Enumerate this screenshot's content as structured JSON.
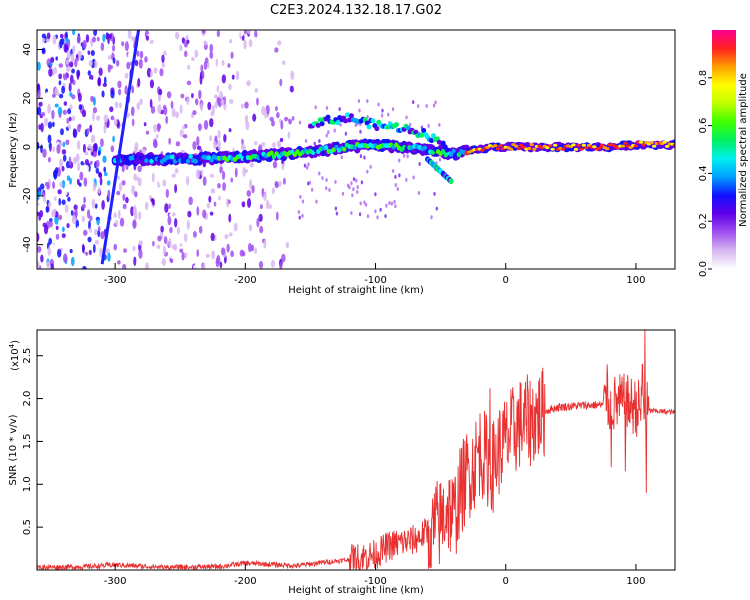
{
  "figure": {
    "title": "C2E3.2024.132.18.17.G02"
  },
  "chart_data": [
    {
      "type": "heatmap",
      "xlabel": "Height of straight line (km)",
      "ylabel": "Frequency (Hz)",
      "xlim": [
        -360,
        130
      ],
      "ylim": [
        -50,
        48
      ],
      "xticks": [
        -300,
        -200,
        -100,
        0,
        100
      ],
      "yticks": [
        -40,
        -20,
        0,
        20,
        40
      ],
      "grid": false,
      "colorbar": {
        "label": "Normalized spectral amplitude",
        "range": [
          0,
          1
        ],
        "ticks": [
          0.0,
          0.2,
          0.4,
          0.6,
          0.8
        ],
        "colormap": [
          "#ffffff",
          "#d8b8f0",
          "#a050f0",
          "#6000e8",
          "#1010ff",
          "#00a0ff",
          "#00f0f0",
          "#00f060",
          "#40ff00",
          "#c0ff00",
          "#ffff00",
          "#ffa000",
          "#ff2020",
          "#ff0090"
        ]
      },
      "features": {
        "noise_region_x": [
          -360,
          -160
        ],
        "main_track": {
          "x": [
            -300,
            -250,
            -200,
            -150,
            -120,
            -100,
            -80,
            -60,
            -45,
            -30,
            -10,
            0,
            20,
            50,
            80,
            100,
            130
          ],
          "frequency": [
            -5,
            -5,
            -4,
            -2,
            0,
            1,
            0,
            -1,
            -3,
            -2,
            0,
            0,
            0,
            0,
            0,
            1,
            1
          ]
        },
        "diagonal_track": {
          "x": [
            -310,
            -282
          ],
          "frequency": [
            -48,
            48
          ]
        },
        "upper_branch": {
          "x": [
            -150,
            -120,
            -100,
            -80,
            -60,
            -45
          ],
          "frequency": [
            10,
            12,
            9,
            8,
            5,
            0
          ]
        },
        "lower_branch": {
          "x": [
            -60,
            -50,
            -42
          ],
          "frequency": [
            -5,
            -10,
            -14
          ]
        }
      }
    },
    {
      "type": "line",
      "xlabel": "Height of straight line (km)",
      "ylabel": "SNR (10 * v/v)",
      "yunit_label": "(x10",
      "yunit_exp": "4",
      "yunit_close": ")",
      "xlim": [
        -360,
        130
      ],
      "ylim": [
        0,
        2.8
      ],
      "xticks": [
        -300,
        -200,
        -100,
        0,
        100
      ],
      "yticks": [
        0.5,
        1.0,
        1.5,
        2.0,
        2.5
      ],
      "grid": false,
      "color": "#e83030",
      "series": [
        {
          "x": [
            -360,
            -320,
            -300,
            -260,
            -220,
            -200,
            -160,
            -140,
            -120,
            -100,
            -90,
            -80,
            -70,
            -60,
            -50,
            -45,
            -40,
            -35,
            -30,
            -25,
            -20,
            -15,
            -10,
            -5,
            0,
            5,
            10,
            20,
            30,
            40,
            60,
            80,
            90,
            100,
            105,
            110,
            120,
            130
          ],
          "values": [
            0.03,
            0.04,
            0.06,
            0.03,
            0.04,
            0.08,
            0.05,
            0.09,
            0.12,
            0.18,
            0.28,
            0.32,
            0.35,
            0.45,
            0.55,
            0.75,
            0.6,
            0.9,
            1.1,
            1.2,
            1.4,
            1.3,
            1.2,
            1.4,
            1.5,
            1.6,
            1.7,
            1.75,
            1.85,
            1.9,
            1.92,
            1.93,
            1.95,
            1.9,
            1.88,
            1.86,
            1.85,
            1.84
          ]
        }
      ],
      "noise": [
        {
          "from": -360,
          "to": -120,
          "amp": 0.03
        },
        {
          "from": -120,
          "to": -60,
          "amp": 0.18
        },
        {
          "from": -60,
          "to": 30,
          "amp": 0.55
        },
        {
          "from": 30,
          "to": 75,
          "amp": 0.05
        },
        {
          "from": 75,
          "to": 110,
          "amp": 0.35
        },
        {
          "from": 110,
          "to": 130,
          "amp": 0.03
        }
      ],
      "spikes": [
        {
          "x": -12,
          "value": 2.12
        },
        {
          "x": 78,
          "value": 2.4
        },
        {
          "x": 81,
          "value": 1.2
        },
        {
          "x": 92,
          "value": 1.15
        },
        {
          "x": 105,
          "value": 2.4
        },
        {
          "x": 107,
          "value": 2.85
        },
        {
          "x": 108,
          "value": 0.9
        }
      ]
    }
  ]
}
